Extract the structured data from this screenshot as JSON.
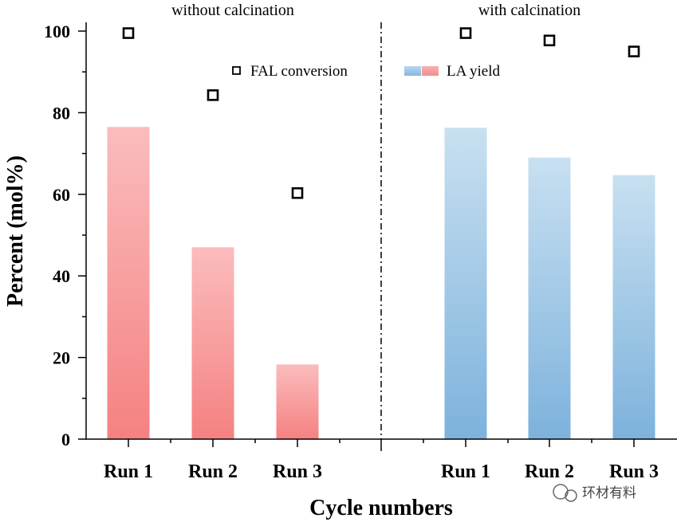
{
  "watermark": "环材有料",
  "chart_data": {
    "type": "bar",
    "xlabel": "Cycle numbers",
    "ylabel": "Percent (mol%)",
    "ylim": [
      0,
      100
    ],
    "yticks": [
      0,
      20,
      40,
      60,
      80,
      100
    ],
    "grid": false,
    "legend": [
      {
        "name": "FAL conversion",
        "kind": "square-marker",
        "color": "#000000"
      },
      {
        "name": "LA yield",
        "kind": "bar",
        "colors": [
          "#86b4dc",
          "#f08c8c"
        ]
      }
    ],
    "panels": [
      {
        "title": "without calcination",
        "categories": [
          "Run 1",
          "Run 2",
          "Run 3"
        ],
        "series": [
          {
            "name": "LA yield",
            "type": "bar",
            "values": [
              76.5,
              47.0,
              18.3
            ],
            "color_top": "#fbbcbd",
            "color_bottom": "#f58181"
          },
          {
            "name": "FAL conversion",
            "type": "scatter",
            "values": [
              99.5,
              84.3,
              60.3
            ]
          }
        ]
      },
      {
        "title": "with calcination",
        "categories": [
          "Run 1",
          "Run 2",
          "Run 3"
        ],
        "series": [
          {
            "name": "LA yield",
            "type": "bar",
            "values": [
              76.3,
              69.0,
              64.7
            ],
            "color_top": "#c8e0f1",
            "color_bottom": "#7db2dc"
          },
          {
            "name": "FAL conversion",
            "type": "scatter",
            "values": [
              99.5,
              97.7,
              95.0
            ]
          }
        ]
      }
    ]
  }
}
